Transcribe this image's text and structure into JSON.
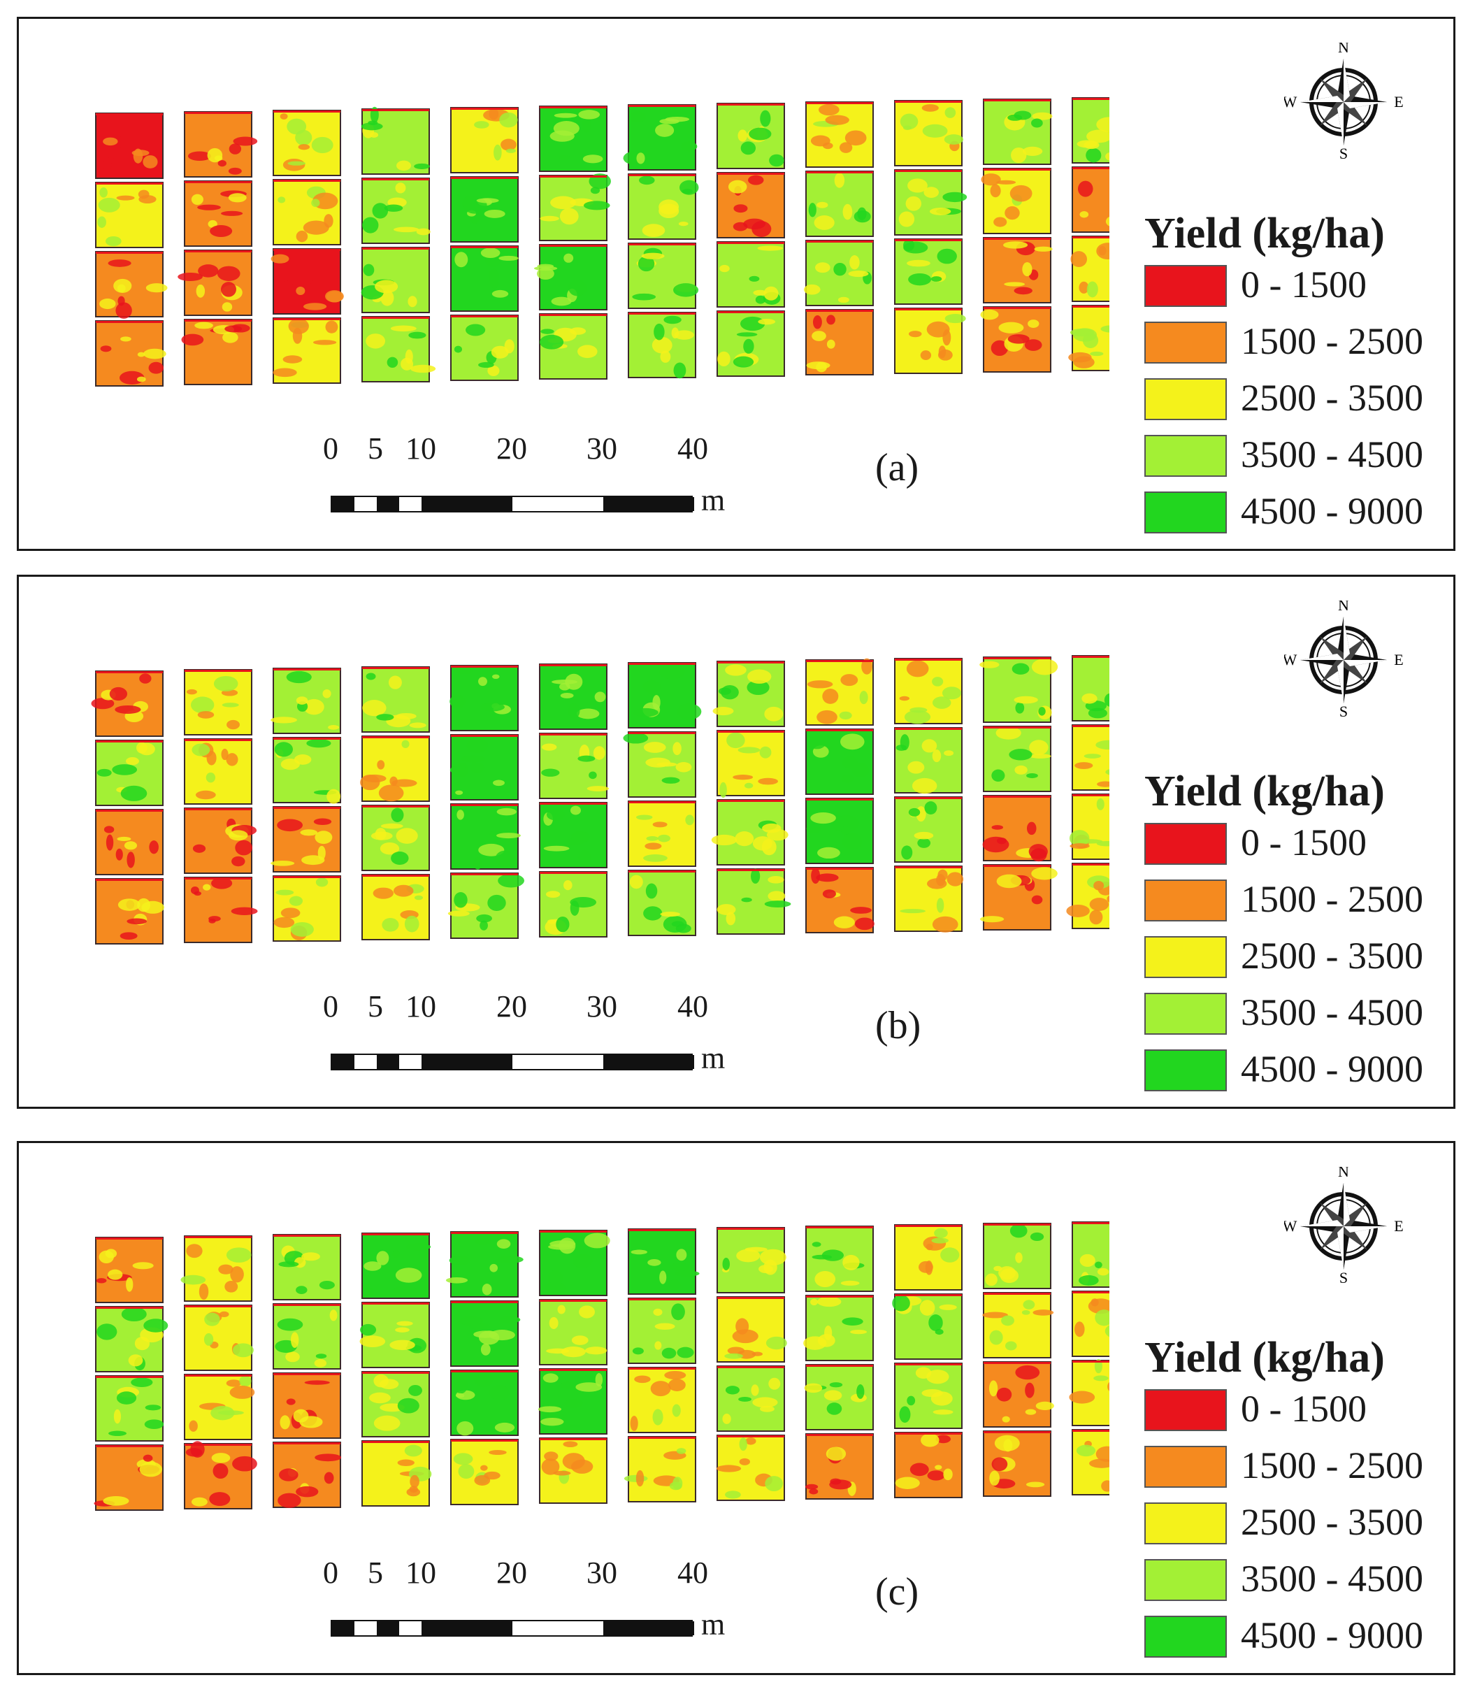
{
  "legend": {
    "title": "Yield (kg/ha)",
    "classes": [
      {
        "label": "0 - 1500",
        "color": "#e8141c"
      },
      {
        "label": "1500 - 2500",
        "color": "#f58a1f"
      },
      {
        "label": "2500 - 3500",
        "color": "#f4f21b"
      },
      {
        "label": "3500 - 4500",
        "color": "#a3f035"
      },
      {
        "label": "4500 - 9000",
        "color": "#22d61f"
      }
    ]
  },
  "scale_bar": {
    "ticks": [
      "0",
      "5",
      "10",
      "20",
      "30",
      "40"
    ],
    "unit": "m"
  },
  "compass": {
    "n": "N",
    "s": "S",
    "e": "E",
    "w": "W"
  },
  "panels": [
    {
      "label": "(a)",
      "grid": [
        [
          0,
          1,
          2,
          3,
          2,
          4,
          4,
          3,
          2,
          2,
          3,
          3
        ],
        [
          2,
          1,
          2,
          3,
          4,
          3,
          3,
          1,
          3,
          3,
          2,
          1
        ],
        [
          1,
          1,
          0,
          3,
          4,
          4,
          3,
          3,
          3,
          3,
          1,
          2
        ],
        [
          1,
          1,
          2,
          3,
          3,
          3,
          3,
          3,
          1,
          2,
          1,
          2
        ]
      ]
    },
    {
      "label": "(b)",
      "grid": [
        [
          1,
          2,
          3,
          3,
          4,
          4,
          4,
          3,
          2,
          2,
          3,
          3
        ],
        [
          3,
          2,
          3,
          2,
          4,
          3,
          3,
          2,
          4,
          3,
          3,
          2
        ],
        [
          1,
          1,
          1,
          3,
          4,
          4,
          2,
          3,
          4,
          3,
          1,
          2
        ],
        [
          1,
          1,
          2,
          2,
          3,
          3,
          3,
          3,
          1,
          2,
          1,
          2
        ]
      ]
    },
    {
      "label": "(c)",
      "grid": [
        [
          1,
          2,
          3,
          4,
          4,
          4,
          4,
          3,
          3,
          2,
          3,
          3
        ],
        [
          3,
          2,
          3,
          3,
          4,
          3,
          3,
          2,
          3,
          3,
          2,
          2
        ],
        [
          3,
          2,
          1,
          3,
          4,
          4,
          2,
          3,
          3,
          3,
          1,
          2
        ],
        [
          1,
          1,
          1,
          2,
          2,
          2,
          2,
          2,
          1,
          1,
          1,
          2
        ]
      ]
    }
  ]
}
